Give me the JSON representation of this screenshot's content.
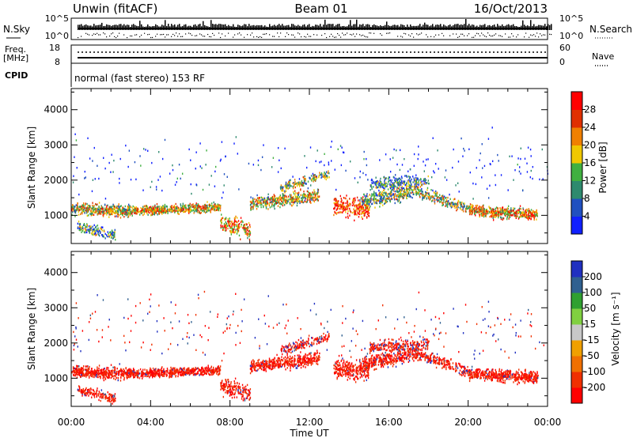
{
  "header": {
    "station": "Unwin (fitACF)",
    "beam": "Beam 01",
    "date": "16/Oct/2013"
  },
  "strips": {
    "nsky_label": "N.Sky",
    "nsky_ticks": [
      "10^5",
      "10^0"
    ],
    "nsearch_label": "N.Search",
    "nsearch_ticks": [
      "10^5",
      "10^0"
    ],
    "freq_label_1": "Freq.",
    "freq_label_2": "[MHz]",
    "freq_ticks": [
      "18",
      "8"
    ],
    "nave_label": "Nave",
    "nave_ticks": [
      "60",
      "0"
    ],
    "cpid_label": "CPID",
    "cpid_text": "normal (fast stereo) 153 RF"
  },
  "chart_data": [
    {
      "type": "heatmap",
      "name": "power",
      "ylabel": "Slant Range [km]",
      "yticks": [
        "1000",
        "2000",
        "3000",
        "4000"
      ],
      "ylim": [
        200,
        4600
      ],
      "colorbar_label": "Power [dB]",
      "colorbar_ticks": [
        "4",
        "8",
        "12",
        "16",
        "20",
        "24",
        "28"
      ],
      "colorbar_colors": [
        "#1020ff",
        "#2050c0",
        "#2e8a6e",
        "#40b040",
        "#f0c800",
        "#f08000",
        "#e03000",
        "#ff0000"
      ]
    },
    {
      "type": "heatmap",
      "name": "velocity",
      "ylabel": "Slant Range [km]",
      "yticks": [
        "1000",
        "2000",
        "3000",
        "4000"
      ],
      "ylim": [
        200,
        4600
      ],
      "xlabel": "Time UT",
      "xticks": [
        "00:00",
        "04:00",
        "08:00",
        "12:00",
        "16:00",
        "20:00",
        "00:00"
      ],
      "xlim": [
        0,
        24
      ],
      "colorbar_label": "Velocity [m s⁻¹]",
      "colorbar_ticks": [
        "-200",
        "-100",
        "-50",
        "-15",
        "15",
        "50",
        "100",
        "200"
      ],
      "colorbar_colors": [
        "#ff0000",
        "#f03000",
        "#f07000",
        "#f0a000",
        "#c8c8c8",
        "#80d040",
        "#30a030",
        "#306090",
        "#2030c0"
      ]
    }
  ]
}
